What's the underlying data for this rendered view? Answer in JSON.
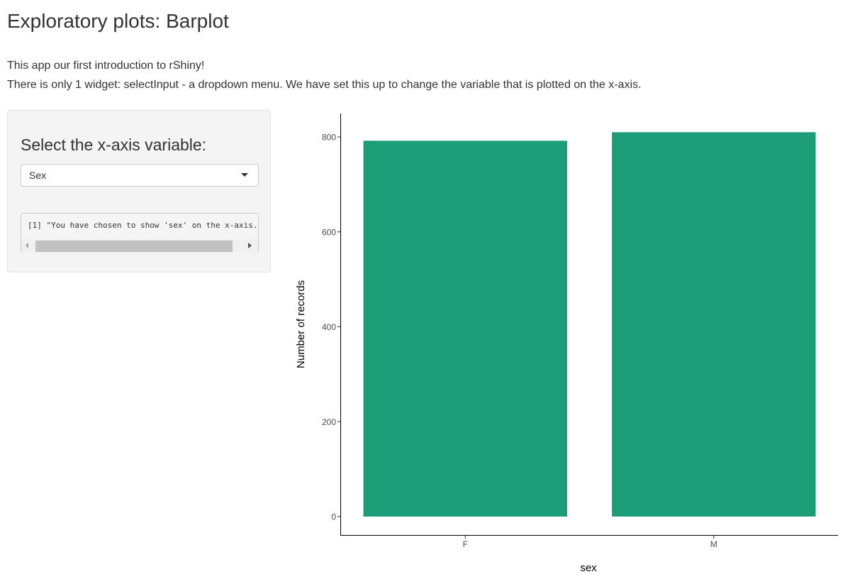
{
  "page": {
    "title": "Exploratory plots: Barplot",
    "intro_line1": "This app our first introduction to rShiny!",
    "intro_line2": "There is only 1 widget: selectInput - a dropdown menu. We have set this up to change the variable that is plotted on the x-axis."
  },
  "sidebar": {
    "control_label": "Select the x-axis variable:",
    "select_value": "Sex",
    "output_text": "[1] \"You have chosen to show 'sex' on the x-axis.\""
  },
  "chart_data": {
    "type": "bar",
    "categories": [
      "F",
      "M"
    ],
    "values": [
      792,
      810
    ],
    "xlabel": "sex",
    "ylabel": "Number of records",
    "yticks": [
      0,
      200,
      400,
      600,
      800
    ],
    "ylim": [
      0,
      850
    ],
    "grid": false,
    "bar_color": "#1b9e77"
  }
}
